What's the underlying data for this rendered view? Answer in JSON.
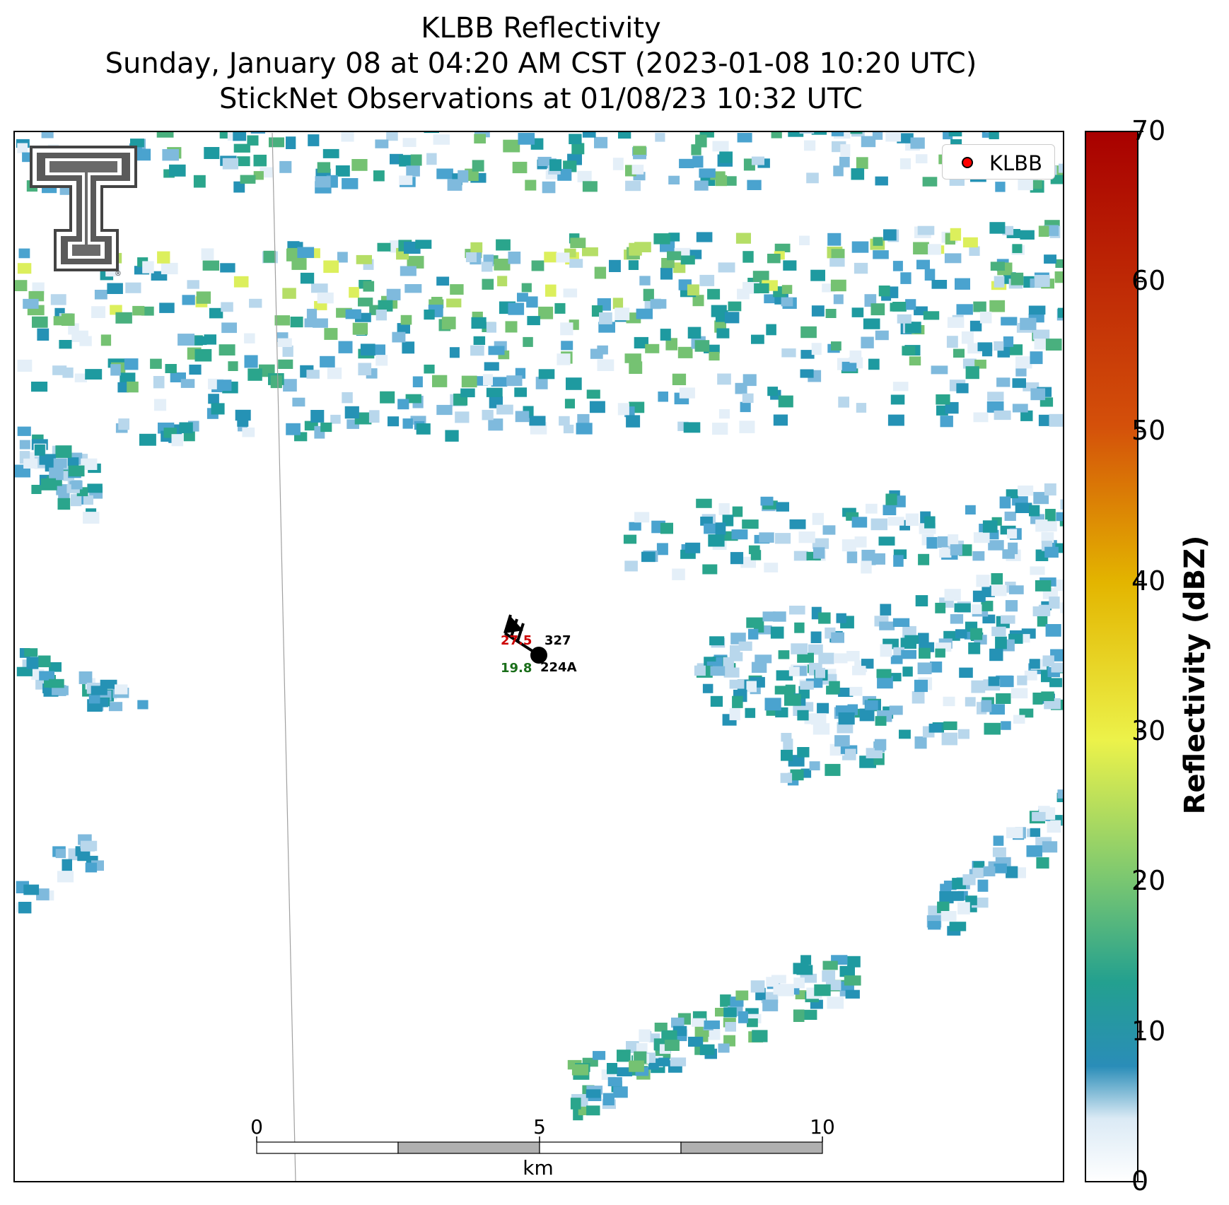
{
  "title": {
    "line1": "KLBB Reflectivity",
    "line2": "Sunday, January 08 at 04:20 AM CST (2023-01-08 10:20 UTC)",
    "line3": "StickNet Observations at 01/08/23 10:32 UTC"
  },
  "legend": {
    "label": "KLBB",
    "marker_color": "#ff0000"
  },
  "colorbar": {
    "label": "Reflectivity (dBZ)",
    "min": 0,
    "max": 70,
    "ticks": [
      "0",
      "10",
      "20",
      "30",
      "40",
      "50",
      "60",
      "70"
    ],
    "colors": [
      "#ffffff",
      "#ffffff",
      "#2a8db8",
      "#23a08f",
      "#7cc870",
      "#ecf24a",
      "#e3b500",
      "#d4500a",
      "#a80000"
    ]
  },
  "scale_bar": {
    "unit": "km",
    "ticks": [
      "0",
      "5",
      "10"
    ]
  },
  "station": {
    "temperature": "27.5",
    "dewpoint": "19.8",
    "pressure": "327",
    "id": "224A",
    "temperature_color": "#cc0000",
    "dewpoint_color": "#1a6e1a"
  },
  "logo": {
    "name": "Texas Tech Double T"
  }
}
